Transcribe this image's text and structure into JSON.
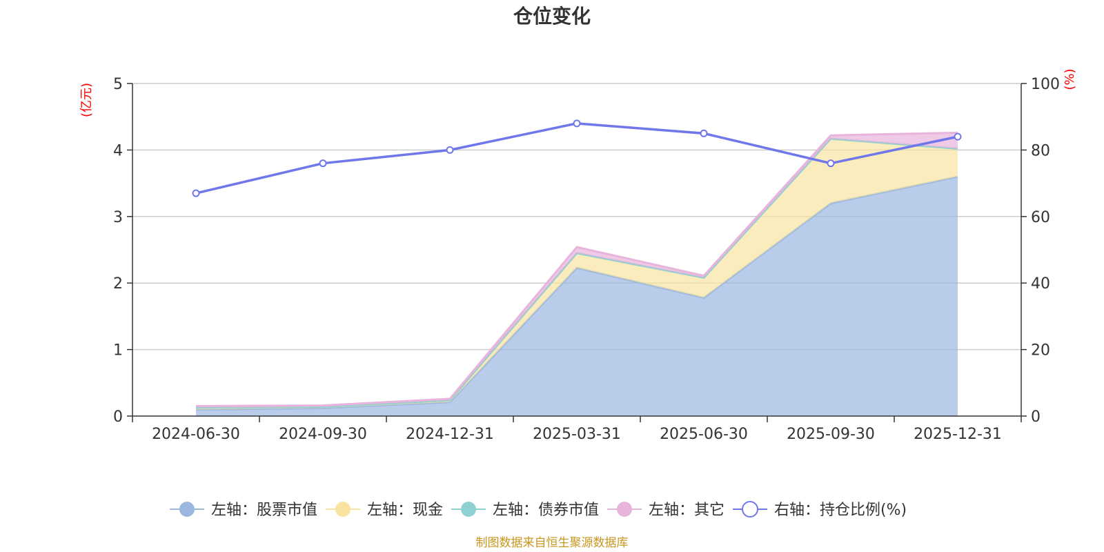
{
  "chart_data": {
    "type": "area",
    "title": "仓位变化",
    "categories": [
      "2024-06-30",
      "2024-09-30",
      "2024-12-31",
      "2025-03-31",
      "2025-06-30",
      "2025-09-30",
      "2025-12-31"
    ],
    "left_axis": {
      "unit": "(亿元)",
      "ylim": [
        0,
        5
      ],
      "ticks": [
        "0",
        "1",
        "2",
        "3",
        "4",
        "5"
      ]
    },
    "right_axis": {
      "unit": "(%)",
      "ylim": [
        0,
        100
      ],
      "ticks": [
        "0",
        "20",
        "40",
        "60",
        "80",
        "100"
      ]
    },
    "series": [
      {
        "name": "左轴：股票市值",
        "axis": "left",
        "stacked": true,
        "color": "#9bb7e0",
        "values": [
          0.1,
          0.12,
          0.21,
          2.23,
          1.78,
          3.2,
          3.6
        ]
      },
      {
        "name": "左轴：现金",
        "axis": "left",
        "stacked": true,
        "color": "#f8e4a0",
        "values": [
          0.03,
          0.02,
          0.03,
          0.22,
          0.3,
          0.97,
          0.42
        ]
      },
      {
        "name": "左轴：债券市值",
        "axis": "left",
        "stacked": true,
        "color": "#8fd0d3",
        "values": [
          0,
          0,
          0,
          0,
          0,
          0,
          0
        ]
      },
      {
        "name": "左轴：其它",
        "axis": "left",
        "stacked": true,
        "color": "#e8b4dc",
        "values": [
          0.02,
          0.02,
          0.02,
          0.09,
          0.03,
          0.05,
          0.24
        ]
      },
      {
        "name": "右轴：持仓比例(%)",
        "axis": "right",
        "type": "line",
        "color": "#7077ea",
        "values": [
          67,
          76,
          80,
          88,
          85,
          76,
          84
        ]
      }
    ],
    "grid": true,
    "legend_position": "bottom",
    "source": "制图数据来自恒生聚源数据库"
  }
}
